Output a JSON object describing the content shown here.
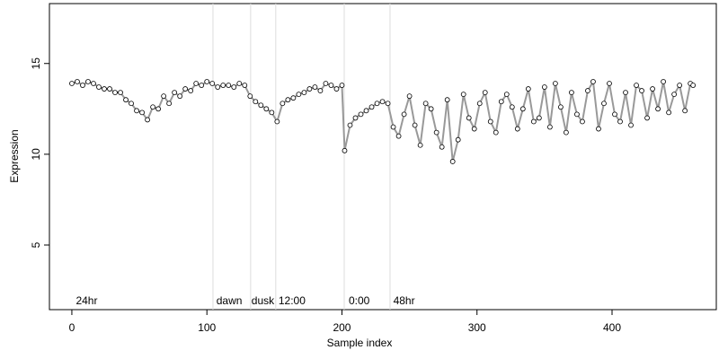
{
  "chart_data": {
    "type": "scatter",
    "xlabel": "Sample index",
    "ylabel": "Expression",
    "xlim": [
      -16.6,
      477.2
    ],
    "ylim": [
      1.44,
      18.3
    ],
    "xticks": [
      0,
      100,
      200,
      300,
      400
    ],
    "yticks": [
      5,
      10,
      15
    ],
    "vlines": [
      104.5,
      132.4,
      151,
      201.7,
      235.6
    ],
    "vline_color": "#dddddd",
    "annotations": [
      {
        "x": 3,
        "label": "24hr"
      },
      {
        "x": 107,
        "label": "dawn"
      },
      {
        "x": 133,
        "label": "dusk"
      },
      {
        "x": 153,
        "label": "12:00"
      },
      {
        "x": 205,
        "label": "0:00"
      },
      {
        "x": 238,
        "label": "48hr"
      }
    ],
    "annotation_y": 1.9,
    "annotation_color": "#aaaaaa",
    "x": [
      0,
      4,
      8,
      12,
      16,
      20,
      24,
      28,
      32,
      36,
      40,
      44,
      48,
      52,
      56,
      60,
      64,
      68,
      72,
      76,
      80,
      84,
      88,
      92,
      96,
      100,
      104,
      108,
      112,
      116,
      120,
      124,
      128,
      132,
      136,
      140,
      144,
      148,
      152,
      156,
      160,
      164,
      168,
      172,
      176,
      180,
      184,
      188,
      192,
      196,
      200,
      202,
      206,
      210,
      214,
      218,
      222,
      226,
      230,
      234,
      238,
      242,
      246,
      250,
      254,
      258,
      262,
      266,
      270,
      274,
      278,
      282,
      286,
      290,
      294,
      298,
      302,
      306,
      310,
      314,
      318,
      322,
      326,
      330,
      334,
      338,
      342,
      346,
      350,
      354,
      358,
      362,
      366,
      370,
      374,
      378,
      382,
      386,
      390,
      394,
      398,
      402,
      406,
      410,
      414,
      418,
      422,
      426,
      430,
      434,
      438,
      442,
      446,
      450,
      454,
      458,
      460
    ],
    "series": [
      {
        "color": "#999999",
        "point_fill": "#ffffff",
        "point_stroke": "#000000",
        "values": [
          13.9,
          14.0,
          13.8,
          14.0,
          13.9,
          13.7,
          13.6,
          13.6,
          13.4,
          13.4,
          13.0,
          12.8,
          12.4,
          12.3,
          11.9,
          12.6,
          12.5,
          13.2,
          12.8,
          13.4,
          13.2,
          13.6,
          13.5,
          13.9,
          13.8,
          14.0,
          13.9,
          13.7,
          13.8,
          13.8,
          13.7,
          13.9,
          13.8,
          13.2,
          12.9,
          12.7,
          12.5,
          12.3,
          11.8,
          12.8,
          13.0,
          13.1,
          13.3,
          13.4,
          13.6,
          13.7,
          13.5,
          13.9,
          13.8,
          13.6,
          13.8,
          10.2,
          11.6,
          12.0,
          12.2,
          12.4,
          12.6,
          12.8,
          12.9,
          12.8,
          11.5,
          11.0,
          12.2,
          13.2,
          11.6,
          10.5,
          12.8,
          12.5,
          11.2,
          10.4,
          13.0,
          9.6,
          10.8,
          13.3,
          12.0,
          11.4,
          12.8,
          13.4,
          11.8,
          11.2,
          12.9,
          13.3,
          12.6,
          11.4,
          12.5,
          13.6,
          11.8,
          12.0,
          13.7,
          11.5,
          13.9,
          12.6,
          11.2,
          13.4,
          12.2,
          11.8,
          13.5,
          14.0,
          11.4,
          12.8,
          13.9,
          12.2,
          11.8,
          13.4,
          11.6,
          13.8,
          13.5,
          12.0,
          13.6,
          12.5,
          14.0,
          12.3,
          13.3,
          13.8,
          12.4,
          13.9,
          13.8
        ]
      }
    ]
  }
}
